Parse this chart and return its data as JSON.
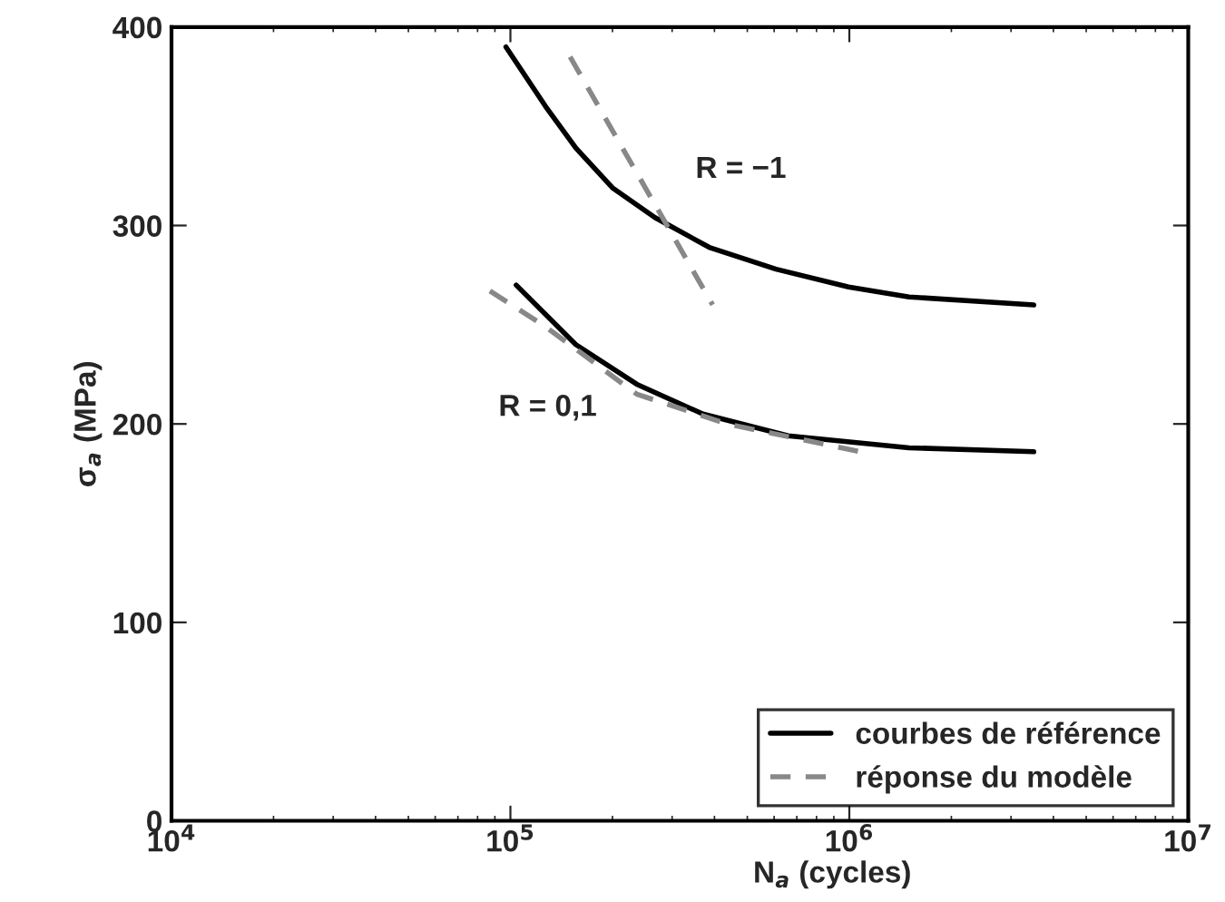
{
  "chart_data": {
    "type": "line",
    "xlabel": "N$_{a}$ (cycles)",
    "ylabel": "σ$_{a}$ (MPa)",
    "log": "x",
    "xlim": [
      10000,
      10000000
    ],
    "xticks": [
      {
        "value": 10000,
        "label": "10$^{4}$"
      },
      {
        "value": 100000,
        "label": "10$^{5}$"
      },
      {
        "value": 1000000,
        "label": "10$^{6}$"
      },
      {
        "value": 10000000,
        "label": "10$^{7}$"
      }
    ],
    "ylim": [
      0,
      400
    ],
    "yticks": [
      0,
      100,
      200,
      300,
      400
    ],
    "grid": false,
    "legend": "bottom right",
    "series": [
      {
        "name": "courbes de référence",
        "color": "#000000",
        "line_style": "solid",
        "x": [
          97000,
          127000,
          156000,
          200000,
          267000,
          386000,
          608000,
          995000,
          1500000,
          3500000
        ],
        "values": [
          390,
          360,
          339,
          319,
          304,
          289,
          278,
          269,
          264,
          260
        ]
      },
      {
        "name": "réponse du modèle",
        "color": "#888888",
        "line_style": "dashed",
        "x": [
          150000,
          395000
        ],
        "values": [
          385,
          260
        ]
      },
      {
        "color": "#000000",
        "line_style": "solid",
        "x": [
          104000,
          156000,
          236000,
          370000,
          660000,
          1500000,
          3500000
        ],
        "values": [
          270,
          240,
          220,
          205,
          194,
          188,
          186
        ]
      },
      {
        "color": "#888888",
        "line_style": "dashed",
        "x": [
          87000,
          127000,
          236000,
          436000,
          1150000
        ],
        "values": [
          267,
          249,
          215,
          200,
          185
        ]
      }
    ],
    "annotations": [
      "R = −1",
      "R = 0,1"
    ]
  }
}
